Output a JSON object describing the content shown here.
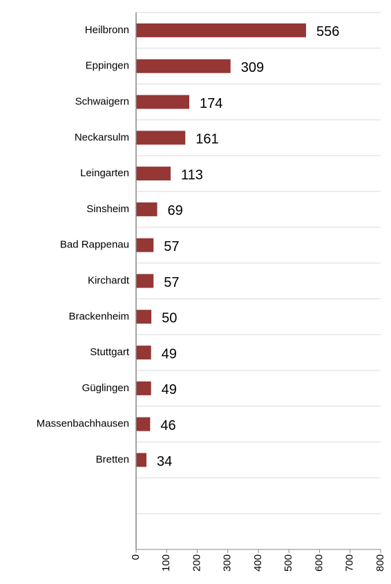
{
  "chart_data": {
    "type": "bar",
    "orientation": "horizontal",
    "categories": [
      "Heilbronn",
      "Eppingen",
      "Schwaigern",
      "Neckarsulm",
      "Leingarten",
      "Sinsheim",
      "Bad Rappenau",
      "Kirchardt",
      "Brackenheim",
      "Stuttgart",
      "Güglingen",
      "Massenbachhausen",
      "Bretten",
      null,
      null
    ],
    "values": [
      556,
      309,
      174,
      161,
      113,
      69,
      57,
      57,
      50,
      49,
      49,
      46,
      34,
      null,
      null
    ],
    "color": "#953735",
    "xlim": [
      0,
      800
    ],
    "xticks": [
      0,
      100,
      200,
      300,
      400,
      500,
      600,
      700,
      800
    ]
  }
}
